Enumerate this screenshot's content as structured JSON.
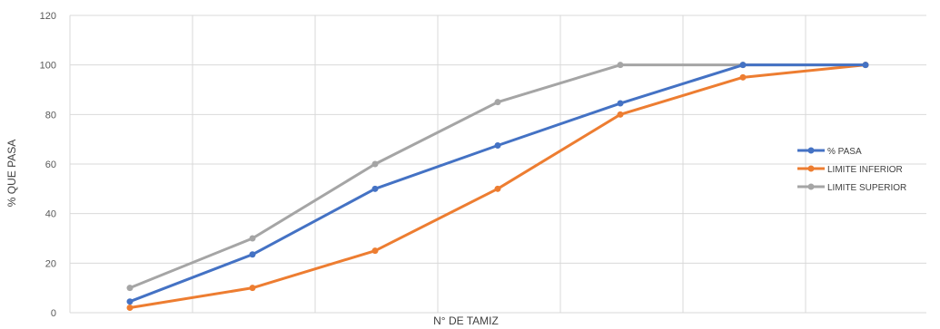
{
  "chart_data": {
    "type": "line",
    "xlabel": "N° DE TAMIZ",
    "ylabel": "% QUE PASA",
    "ylim": [
      0,
      120
    ],
    "yticks": [
      0,
      20,
      40,
      60,
      80,
      100,
      120
    ],
    "grid": true,
    "legend_position": "right",
    "x": [
      1,
      2,
      3,
      4,
      5,
      6,
      7
    ],
    "series": [
      {
        "name": "% PASA",
        "color": "#4472C4",
        "values": [
          4.5,
          23.5,
          50,
          67.5,
          84.5,
          100,
          100
        ]
      },
      {
        "name": "LIMITE INFERIOR",
        "color": "#ED7D31",
        "values": [
          2,
          10,
          25,
          50,
          80,
          95,
          100
        ]
      },
      {
        "name": "LIMITE SUPERIOR",
        "color": "#A5A5A5",
        "values": [
          10,
          30,
          60,
          85,
          100,
          100,
          100
        ]
      }
    ]
  }
}
